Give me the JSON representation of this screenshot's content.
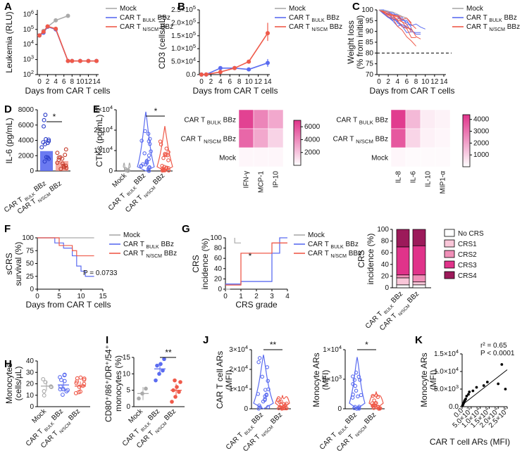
{
  "panels": {
    "A": "A",
    "B": "B",
    "C": "C",
    "D": "D",
    "E": "E",
    "F": "F",
    "G": "G",
    "H": "H",
    "I": "I",
    "J": "J",
    "K": "K"
  },
  "groups": {
    "mock": "Mock",
    "bulk_main": "CAR T",
    "bulk_sub": "BULK",
    "bulk_tail": "BBz",
    "nscm_main": "CAR T",
    "nscm_sub": "N/SCM",
    "nscm_tail": "BBz"
  },
  "colors": {
    "mock": "#aaaaaa",
    "bulk": "#5b6cf0",
    "nscm": "#ef5a4a",
    "heat_hi": "#e0338a"
  },
  "chart_data": [
    {
      "panel": "A",
      "type": "line",
      "xlabel": "Days from CAR T cells",
      "ylabel": "Leukemia (RLU)",
      "yscale": "log",
      "x": [
        0,
        1,
        2,
        4,
        7,
        8,
        10,
        12,
        14
      ],
      "xticks": [
        "0",
        "2",
        "4",
        "6",
        "8",
        "10",
        "12",
        "14"
      ],
      "yticks": [
        "10^2",
        "10^3",
        "10^4",
        "10^5",
        "10^6"
      ],
      "series": [
        {
          "name": "Mock",
          "x": [
            0,
            1,
            2,
            4,
            7
          ],
          "y": [
            40000,
            80000,
            150000,
            400000,
            800000
          ]
        },
        {
          "name": "CAR T BULK BBz",
          "x": [
            0,
            1,
            2,
            4,
            7,
            8,
            10,
            12,
            14
          ],
          "y": [
            40000,
            60000,
            150000,
            100000,
            800,
            800,
            800,
            800,
            800
          ]
        },
        {
          "name": "CAR T N/SCM BBz",
          "x": [
            0,
            1,
            2,
            4,
            7,
            8,
            10,
            12,
            14
          ],
          "y": [
            40000,
            70000,
            160000,
            110000,
            800,
            800,
            800,
            800,
            800
          ]
        }
      ]
    },
    {
      "panel": "B",
      "type": "line",
      "xlabel": "Days from CAR T cells",
      "ylabel": "CD3 (cells/µL)",
      "x": [
        0,
        1,
        4,
        7,
        10,
        14
      ],
      "xticks": [
        "0",
        "2",
        "4",
        "6",
        "8",
        "10",
        "12",
        "14"
      ],
      "yticks": [
        "0.0",
        "5.0×10^4",
        "1.0×10^5",
        "1.5×10^5",
        "2.0×10^5",
        "2.5×10^5"
      ],
      "series": [
        {
          "name": "Mock",
          "x": [
            0,
            1
          ],
          "y": [
            0,
            0
          ]
        },
        {
          "name": "CAR T BULK BBz",
          "x": [
            0,
            1,
            4,
            7,
            10,
            14
          ],
          "y": [
            0,
            500,
            25000,
            25000,
            20000,
            45000
          ]
        },
        {
          "name": "CAR T N/SCM BBz",
          "x": [
            0,
            1,
            4,
            7,
            10,
            14
          ],
          "y": [
            0,
            500,
            10000,
            25000,
            50000,
            160000
          ]
        }
      ]
    },
    {
      "panel": "C",
      "type": "line",
      "xlabel": "Days from CAR T cells",
      "ylabel": "Weight loss (% from initial)",
      "xticks": [
        "0",
        "2",
        "4",
        "6",
        "8",
        "10",
        "12",
        "14"
      ],
      "yticks": [
        "70",
        "75",
        "80",
        "85",
        "90",
        "95",
        "100"
      ],
      "threshold": 80
    },
    {
      "panel": "D",
      "type": "bar",
      "ylabel": "IL-6 (pg/mL)",
      "yticks": [
        "0",
        "2000",
        "4000",
        "6000",
        "8000"
      ],
      "categories": [
        "CAR T BULK BBz",
        "CAR T N/SCM BBz"
      ],
      "values": [
        2600,
        1300
      ],
      "significance": "*"
    },
    {
      "panel": "E",
      "type": "violin",
      "ylabel": "CTKs (pg/mL)",
      "yticks": [
        "0",
        "1×10^4",
        "2×10^4",
        "3×10^4"
      ],
      "categories": [
        "Mock",
        "CAR T BULK BBz",
        "CAR T N/SCM BBz"
      ],
      "significance": "*"
    },
    {
      "panel": "E-heatmap-1",
      "type": "heatmap",
      "rows": [
        "CAR T BULK BBz",
        "CAR T N/SCM BBz",
        "Mock"
      ],
      "cols": [
        "IFN-γ",
        "MCP-1",
        "IP-10"
      ],
      "scale": [
        "2000",
        "4000",
        "6000"
      ],
      "values": [
        [
          6500,
          4200,
          3000
        ],
        [
          5200,
          3000,
          1500
        ],
        [
          300,
          300,
          300
        ]
      ]
    },
    {
      "panel": "E-heatmap-2",
      "type": "heatmap",
      "rows": [
        "CAR T BULK BBz",
        "CAR T N/SCM BBz",
        "Mock"
      ],
      "cols": [
        "IL-8",
        "IL-6",
        "IL-10",
        "MIP1-α"
      ],
      "scale": [
        "1000",
        "2000",
        "3000",
        "4000"
      ],
      "values": [
        [
          4200,
          1500,
          400,
          250
        ],
        [
          3600,
          900,
          300,
          200
        ],
        [
          200,
          100,
          100,
          100
        ]
      ]
    },
    {
      "panel": "F",
      "type": "line",
      "xlabel": "Days from CAR T cells",
      "ylabel": "sCRS survival (%)",
      "xticks": [
        "0",
        "5",
        "10",
        "15"
      ],
      "yticks": [
        "0",
        "25",
        "50",
        "75",
        "100"
      ],
      "annotation": "P = 0.0733"
    },
    {
      "panel": "G",
      "type": "line",
      "xlabel": "CRS grade",
      "ylabel": "CRS incidence (%)",
      "xticks": [
        "0",
        "1",
        "2",
        "3",
        "4"
      ],
      "yticks": [
        "0",
        "20",
        "40",
        "60",
        "80",
        "100"
      ],
      "significance": "*"
    },
    {
      "panel": "G-stacked",
      "type": "bar",
      "ylabel": "CRS incidence (%)",
      "yticks": [
        "0",
        "20",
        "40",
        "60",
        "80",
        "100"
      ],
      "categories": [
        "CAR T BULK BBz",
        "CAR T N/SCM BBz"
      ],
      "series": [
        {
          "name": "No CRS",
          "values": [
            5,
            5
          ]
        },
        {
          "name": "CRS1",
          "values": [
            12,
            5
          ]
        },
        {
          "name": "CRS2",
          "values": [
            5,
            12
          ]
        },
        {
          "name": "CRS3",
          "values": [
            48,
            50
          ]
        },
        {
          "name": "CRS4",
          "values": [
            30,
            28
          ]
        }
      ]
    },
    {
      "panel": "H",
      "type": "scatter",
      "ylabel": "Monocytes (cells/µL)",
      "yticks": [
        "0",
        "10",
        "20",
        "30",
        "40"
      ],
      "categories": [
        "Mock",
        "CAR T BULK BBz",
        "CAR T N/SCM BBz"
      ],
      "means": [
        18,
        19,
        18
      ]
    },
    {
      "panel": "I",
      "type": "scatter",
      "ylabel": "CD80+/86+/DR+/54+ monocytes (%)",
      "yticks": [
        "0",
        "5",
        "10",
        "15"
      ],
      "categories": [
        "Mock",
        "CAR T BULK BBz",
        "CAR T N/SCM BBz"
      ],
      "means": [
        4,
        11.5,
        5
      ],
      "significance": "**"
    },
    {
      "panel": "J1",
      "type": "violin",
      "ylabel": "CAR T cell ARs (MFI)",
      "yticks": [
        "0",
        "1×10^4",
        "2×10^4",
        "3×10^4"
      ],
      "categories": [
        "CAR T BULK BBz",
        "CAR T N/SCM BBz"
      ],
      "significance": "**"
    },
    {
      "panel": "J2",
      "type": "violin",
      "ylabel": "Monocyte ARs (MFI)",
      "yticks": [
        "0",
        "5×10^3",
        "1×10^4"
      ],
      "categories": [
        "CAR T BULK BBz",
        "CAR T N/SCM BBz"
      ],
      "significance": "*"
    },
    {
      "panel": "K",
      "type": "scatter",
      "xlabel": "CAR T cell ARs (MFI)",
      "ylabel": "Monocyte ARs (MFI)",
      "xticks": [
        "0.0",
        "5.0×10^3",
        "1.0×10^4",
        "1.5×10^4",
        "2.0×10^4",
        "2.5×10^4"
      ],
      "yticks": [
        "0.0",
        "5.0×10^3",
        "1.0×10^4",
        "1.5×10^4"
      ],
      "r2": "r² = 0.65",
      "p": "P < 0.0001"
    }
  ],
  "crs_legend": [
    "No CRS",
    "CRS1",
    "CRS2",
    "CRS3",
    "CRS4"
  ]
}
